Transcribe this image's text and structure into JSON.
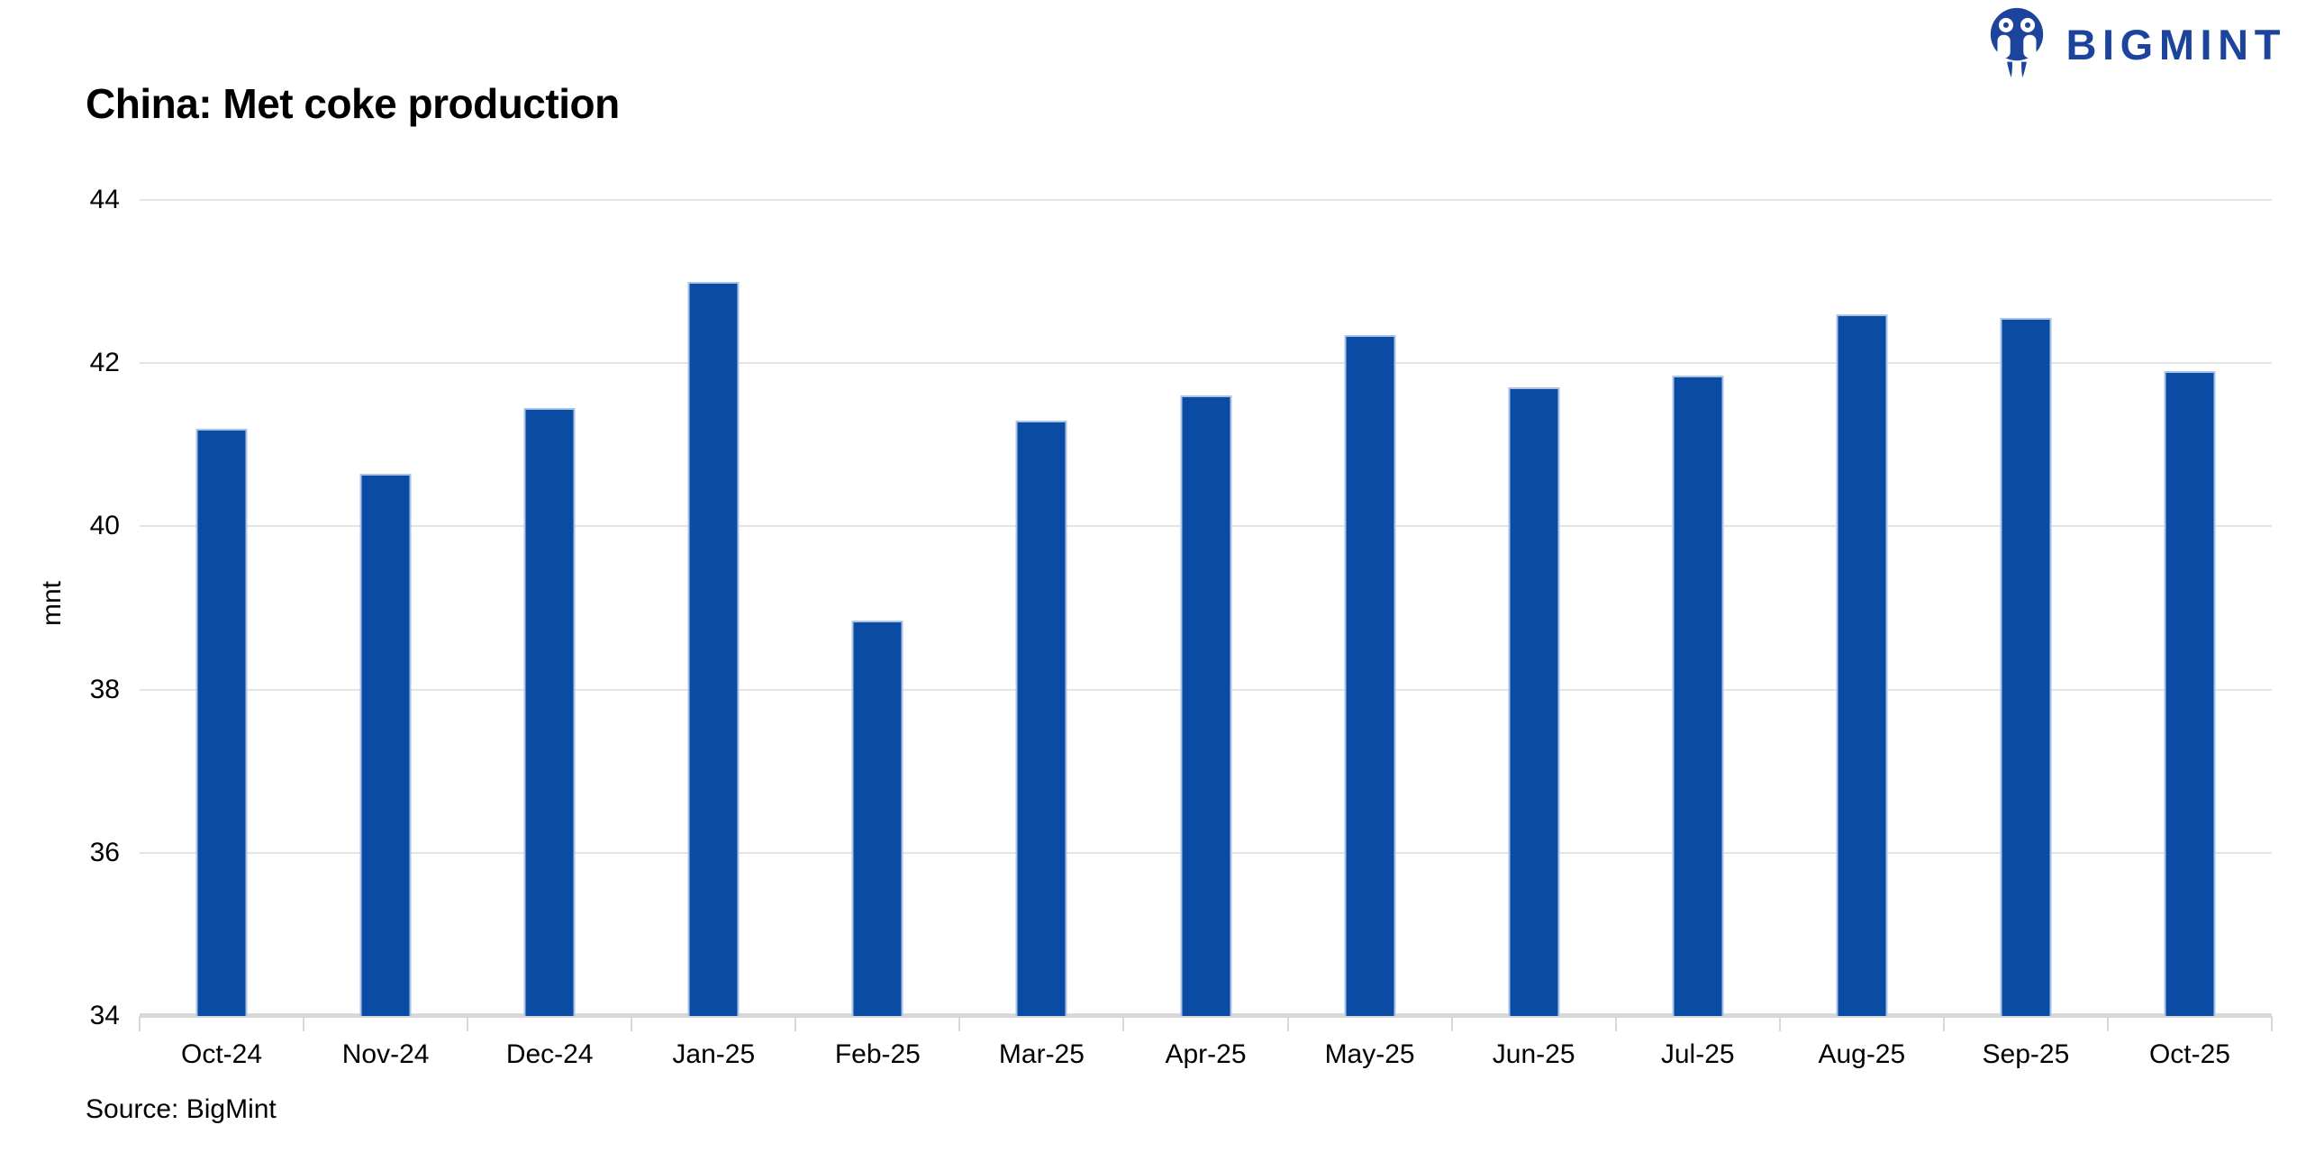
{
  "header": {
    "logo_text": "BIGMINT",
    "logo_color": "#1d449c"
  },
  "chart_data": {
    "type": "bar",
    "title": "China: Met coke production",
    "categories": [
      "Oct-24",
      "Nov-24",
      "Dec-24",
      "Jan-25",
      "Feb-25",
      "Mar-25",
      "Apr-25",
      "May-25",
      "Jun-25",
      "Jul-25",
      "Aug-25",
      "Sep-25",
      "Oct-25"
    ],
    "values": [
      41.2,
      40.65,
      41.45,
      43.0,
      38.85,
      41.3,
      41.6,
      42.35,
      41.7,
      41.85,
      42.6,
      42.55,
      41.9
    ],
    "xlabel": "",
    "ylabel": "mnt",
    "ylim": [
      34,
      44
    ],
    "ytick_step": 2,
    "grid": true,
    "legend": "none",
    "bar_color": "#0a4ca3",
    "bar_border_color": "#aac3e6",
    "gridline_color": "#e4e4e4",
    "axisline_color": "#d8d8d8"
  },
  "footer": {
    "source": "Source: BigMint"
  }
}
